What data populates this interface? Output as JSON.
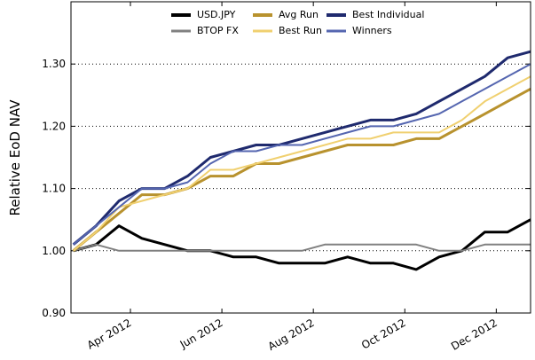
{
  "chart_data": {
    "type": "line",
    "ylabel": "Relative EoD NAV",
    "x": [
      2.75,
      3.25,
      3.75,
      4.25,
      4.75,
      5.25,
      5.75,
      6.25,
      6.75,
      7.25,
      7.75,
      8.25,
      8.75,
      9.25,
      9.75,
      10.25,
      10.75,
      11.25,
      11.75,
      12.25,
      12.75
    ],
    "xlim": [
      2.7,
      12.75
    ],
    "xticks": [
      {
        "value": 4,
        "label": "Apr 2012"
      },
      {
        "value": 6,
        "label": "Jun 2012"
      },
      {
        "value": 8,
        "label": "Aug 2012"
      },
      {
        "value": 10,
        "label": "Oct 2012"
      },
      {
        "value": 12,
        "label": "Dec 2012"
      }
    ],
    "ylim": [
      0.9,
      1.4
    ],
    "yticks": [
      {
        "value": 0.9,
        "label": "0.90"
      },
      {
        "value": 1.0,
        "label": "1.00"
      },
      {
        "value": 1.1,
        "label": "1.10"
      },
      {
        "value": 1.2,
        "label": "1.20"
      },
      {
        "value": 1.3,
        "label": "1.30"
      }
    ],
    "grid": true,
    "legend": "upper center",
    "series": [
      {
        "name": "USD.JPY",
        "color": "#000000",
        "linewidth": 3,
        "values": [
          1.0,
          1.01,
          1.04,
          1.02,
          1.01,
          1.0,
          1.0,
          0.99,
          0.99,
          0.98,
          0.98,
          0.98,
          0.99,
          0.98,
          0.98,
          0.97,
          0.99,
          1.0,
          1.03,
          1.03,
          1.05
        ]
      },
      {
        "name": "BTOP FX",
        "color": "#808080",
        "linewidth": 2,
        "values": [
          1.0,
          1.01,
          1.0,
          1.0,
          1.0,
          1.0,
          1.0,
          1.0,
          1.0,
          1.0,
          1.0,
          1.01,
          1.01,
          1.01,
          1.01,
          1.01,
          1.0,
          1.0,
          1.01,
          1.01,
          1.01
        ]
      },
      {
        "name": "Avg Run",
        "color": "#b8922e",
        "linewidth": 3,
        "values": [
          1.0,
          1.03,
          1.06,
          1.09,
          1.09,
          1.1,
          1.12,
          1.12,
          1.14,
          1.14,
          1.15,
          1.16,
          1.17,
          1.17,
          1.17,
          1.18,
          1.18,
          1.2,
          1.22,
          1.24,
          1.26
        ]
      },
      {
        "name": "Best Run",
        "color": "#f0d070",
        "linewidth": 2,
        "values": [
          1.0,
          1.03,
          1.07,
          1.08,
          1.09,
          1.1,
          1.13,
          1.13,
          1.14,
          1.15,
          1.16,
          1.17,
          1.18,
          1.18,
          1.19,
          1.19,
          1.19,
          1.21,
          1.24,
          1.26,
          1.28
        ]
      },
      {
        "name": "Best Individual",
        "color": "#1f2a6e",
        "linewidth": 3,
        "values": [
          1.01,
          1.04,
          1.08,
          1.1,
          1.1,
          1.12,
          1.15,
          1.16,
          1.17,
          1.17,
          1.18,
          1.19,
          1.2,
          1.21,
          1.21,
          1.22,
          1.24,
          1.26,
          1.28,
          1.31,
          1.32
        ]
      },
      {
        "name": "Winners",
        "color": "#5566b0",
        "linewidth": 2,
        "values": [
          1.01,
          1.04,
          1.07,
          1.1,
          1.1,
          1.11,
          1.14,
          1.16,
          1.16,
          1.17,
          1.17,
          1.18,
          1.19,
          1.2,
          1.2,
          1.21,
          1.22,
          1.24,
          1.26,
          1.28,
          1.3
        ]
      }
    ]
  }
}
